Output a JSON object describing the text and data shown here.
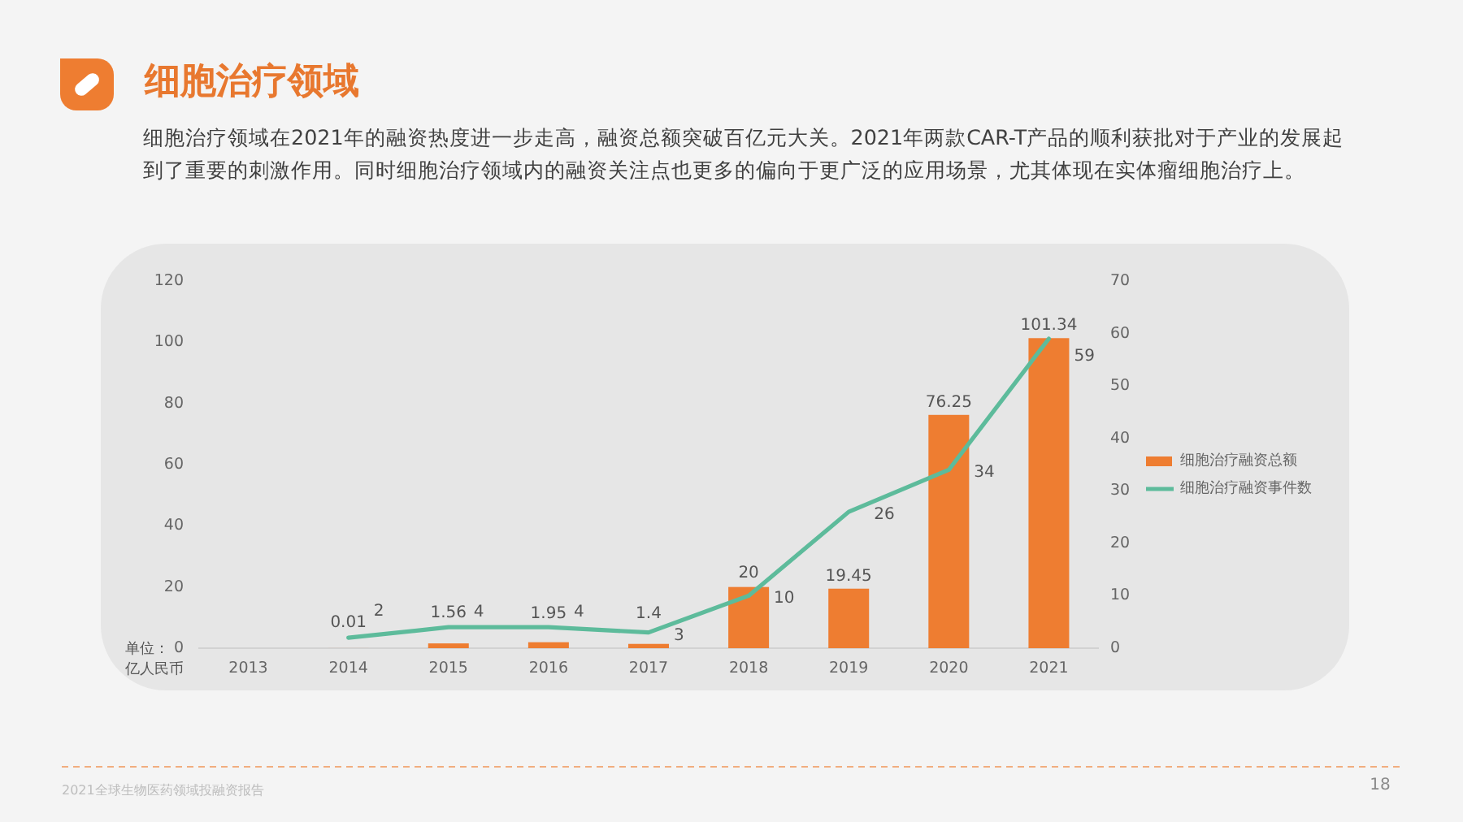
{
  "chart_data": {
    "type": "bar",
    "title": "细胞治疗领域",
    "subtitle": "细胞治疗领域在2021年的融资热度进一步走高，融资总额突破百亿元大关。2021年两款CAR-T产品的顺利获批对于产业的发展起到了重要的刺激作用。同时细胞治疗领域内的融资关注点也更多的偏向于更广泛的应用场景，尤其体现在实体瘤细胞治疗上。",
    "categories": [
      "2013",
      "2014",
      "2015",
      "2016",
      "2017",
      "2018",
      "2019",
      "2020",
      "2021"
    ],
    "ylabel": "单位：亿人民币",
    "ylim": [
      0,
      120
    ],
    "yticks": [
      0,
      20,
      40,
      60,
      80,
      100,
      120
    ],
    "y2lim": [
      0,
      70
    ],
    "y2ticks": [
      0,
      10,
      20,
      30,
      40,
      50,
      60,
      70
    ],
    "series": [
      {
        "name": "细胞治疗融资总额",
        "color": "#ee7d31",
        "values": [
          null,
          0.01,
          1.56,
          1.95,
          1.4,
          20,
          19.45,
          76.25,
          101.34
        ]
      },
      {
        "name": "细胞治疗融资事件数",
        "type": "line",
        "axis": "y2",
        "color": "#5dbb9b",
        "values": [
          null,
          2,
          4,
          4,
          3,
          10,
          26,
          34,
          59
        ]
      }
    ],
    "data_labels": true,
    "legend": "right",
    "grid": false,
    "annotations": [
      "2021全球生物医药领域投融资报告",
      "18"
    ]
  }
}
